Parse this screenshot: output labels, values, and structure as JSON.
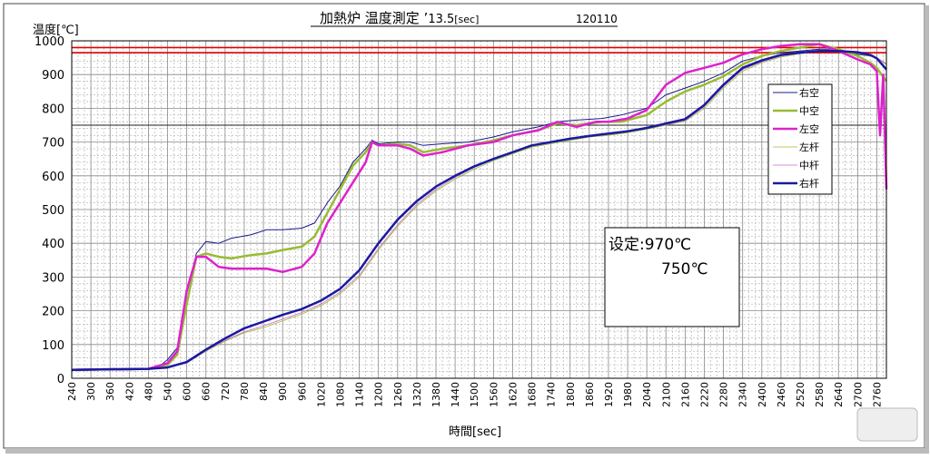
{
  "chart_data": {
    "type": "line",
    "title": "加熱炉 温度測定 ’13.5[sec]　120110",
    "title_main": "加熱炉 温度測定 ’",
    "title_ver": "13.5",
    "title_unit": "[sec]",
    "title_id": "120110",
    "ylabel": "温度[℃]",
    "xlabel": "時間[sec]",
    "ylim": [
      0,
      1000
    ],
    "xlim": [
      240,
      2790
    ],
    "grid": true,
    "legend_position": "right",
    "y_ticks": [
      0,
      100,
      200,
      300,
      400,
      500,
      600,
      700,
      800,
      900,
      1000
    ],
    "x_ticks": [
      240,
      300,
      360,
      420,
      480,
      540,
      600,
      660,
      720,
      780,
      840,
      900,
      960,
      1020,
      1080,
      1140,
      1200,
      1260,
      1320,
      1380,
      1440,
      1500,
      1560,
      1620,
      1680,
      1740,
      1800,
      1860,
      1920,
      1980,
      2040,
      2100,
      2160,
      2220,
      2280,
      2340,
      2400,
      2460,
      2520,
      2580,
      2640,
      2700,
      2760
    ],
    "reference_lines": [
      {
        "value": 980,
        "color": "#e00000"
      },
      {
        "value": 965,
        "color": "#e00000"
      },
      {
        "value": 750,
        "color": "#222222"
      }
    ],
    "annotation": {
      "line1": "设定:970℃",
      "line2": "750℃"
    },
    "series": [
      {
        "name": "右空",
        "color": "#1a1a8c",
        "width": 1,
        "points": [
          [
            240,
            25
          ],
          [
            480,
            28
          ],
          [
            520,
            40
          ],
          [
            540,
            55
          ],
          [
            570,
            90
          ],
          [
            600,
            250
          ],
          [
            630,
            370
          ],
          [
            660,
            405
          ],
          [
            700,
            400
          ],
          [
            740,
            415
          ],
          [
            800,
            425
          ],
          [
            850,
            440
          ],
          [
            900,
            440
          ],
          [
            960,
            445
          ],
          [
            1000,
            460
          ],
          [
            1040,
            520
          ],
          [
            1080,
            570
          ],
          [
            1120,
            640
          ],
          [
            1160,
            680
          ],
          [
            1180,
            705
          ],
          [
            1200,
            695
          ],
          [
            1260,
            700
          ],
          [
            1300,
            700
          ],
          [
            1340,
            690
          ],
          [
            1400,
            695
          ],
          [
            1480,
            700
          ],
          [
            1560,
            715
          ],
          [
            1620,
            730
          ],
          [
            1700,
            745
          ],
          [
            1760,
            760
          ],
          [
            1820,
            765
          ],
          [
            1900,
            770
          ],
          [
            1960,
            780
          ],
          [
            2040,
            800
          ],
          [
            2100,
            840
          ],
          [
            2160,
            860
          ],
          [
            2220,
            880
          ],
          [
            2280,
            905
          ],
          [
            2340,
            940
          ],
          [
            2400,
            955
          ],
          [
            2460,
            965
          ],
          [
            2520,
            970
          ],
          [
            2580,
            975
          ],
          [
            2640,
            975
          ],
          [
            2700,
            960
          ],
          [
            2740,
            955
          ],
          [
            2760,
            950
          ],
          [
            2790,
            930
          ]
        ]
      },
      {
        "name": "中空",
        "color": "#99bb33",
        "width": 2.5,
        "points": [
          [
            240,
            25
          ],
          [
            480,
            28
          ],
          [
            540,
            40
          ],
          [
            570,
            70
          ],
          [
            600,
            220
          ],
          [
            630,
            360
          ],
          [
            660,
            370
          ],
          [
            700,
            360
          ],
          [
            740,
            355
          ],
          [
            800,
            365
          ],
          [
            850,
            370
          ],
          [
            900,
            380
          ],
          [
            960,
            390
          ],
          [
            1000,
            420
          ],
          [
            1040,
            490
          ],
          [
            1080,
            560
          ],
          [
            1120,
            630
          ],
          [
            1160,
            670
          ],
          [
            1180,
            700
          ],
          [
            1200,
            690
          ],
          [
            1260,
            695
          ],
          [
            1300,
            690
          ],
          [
            1340,
            670
          ],
          [
            1400,
            680
          ],
          [
            1480,
            690
          ],
          [
            1560,
            705
          ],
          [
            1620,
            720
          ],
          [
            1700,
            735
          ],
          [
            1760,
            755
          ],
          [
            1820,
            750
          ],
          [
            1900,
            760
          ],
          [
            1960,
            760
          ],
          [
            2040,
            780
          ],
          [
            2100,
            820
          ],
          [
            2160,
            850
          ],
          [
            2220,
            870
          ],
          [
            2280,
            895
          ],
          [
            2340,
            930
          ],
          [
            2400,
            955
          ],
          [
            2460,
            970
          ],
          [
            2520,
            980
          ],
          [
            2580,
            990
          ],
          [
            2640,
            975
          ],
          [
            2700,
            955
          ],
          [
            2740,
            935
          ],
          [
            2760,
            920
          ],
          [
            2790,
            880
          ]
        ]
      },
      {
        "name": "左空",
        "color": "#dd22cc",
        "width": 2.5,
        "points": [
          [
            240,
            25
          ],
          [
            480,
            28
          ],
          [
            540,
            45
          ],
          [
            570,
            80
          ],
          [
            600,
            260
          ],
          [
            630,
            360
          ],
          [
            660,
            360
          ],
          [
            700,
            330
          ],
          [
            740,
            325
          ],
          [
            800,
            325
          ],
          [
            850,
            325
          ],
          [
            900,
            315
          ],
          [
            960,
            330
          ],
          [
            1000,
            370
          ],
          [
            1040,
            460
          ],
          [
            1080,
            520
          ],
          [
            1120,
            580
          ],
          [
            1160,
            640
          ],
          [
            1180,
            700
          ],
          [
            1200,
            690
          ],
          [
            1260,
            690
          ],
          [
            1300,
            680
          ],
          [
            1340,
            660
          ],
          [
            1400,
            670
          ],
          [
            1480,
            690
          ],
          [
            1560,
            700
          ],
          [
            1620,
            720
          ],
          [
            1700,
            735
          ],
          [
            1760,
            760
          ],
          [
            1820,
            745
          ],
          [
            1880,
            760
          ],
          [
            1920,
            760
          ],
          [
            1980,
            770
          ],
          [
            2040,
            795
          ],
          [
            2100,
            870
          ],
          [
            2160,
            905
          ],
          [
            2220,
            920
          ],
          [
            2280,
            935
          ],
          [
            2340,
            960
          ],
          [
            2400,
            975
          ],
          [
            2460,
            985
          ],
          [
            2520,
            990
          ],
          [
            2580,
            990
          ],
          [
            2640,
            970
          ],
          [
            2700,
            945
          ],
          [
            2740,
            930
          ],
          [
            2760,
            910
          ],
          [
            2770,
            720
          ],
          [
            2780,
            900
          ],
          [
            2790,
            560
          ]
        ]
      },
      {
        "name": "左杆",
        "color": "#99bb33",
        "width": 0.8,
        "points": [
          [
            240,
            25
          ],
          [
            480,
            28
          ],
          [
            540,
            33
          ],
          [
            600,
            45
          ],
          [
            660,
            80
          ],
          [
            720,
            110
          ],
          [
            780,
            135
          ],
          [
            840,
            150
          ],
          [
            900,
            170
          ],
          [
            960,
            190
          ],
          [
            1020,
            215
          ],
          [
            1080,
            250
          ],
          [
            1140,
            300
          ],
          [
            1200,
            380
          ],
          [
            1260,
            450
          ],
          [
            1320,
            510
          ],
          [
            1380,
            555
          ],
          [
            1440,
            590
          ],
          [
            1500,
            620
          ],
          [
            1560,
            645
          ],
          [
            1620,
            665
          ],
          [
            1680,
            685
          ],
          [
            1740,
            695
          ],
          [
            1800,
            705
          ],
          [
            1860,
            715
          ],
          [
            1920,
            720
          ],
          [
            1980,
            728
          ],
          [
            2040,
            738
          ],
          [
            2100,
            750
          ],
          [
            2160,
            762
          ],
          [
            2220,
            800
          ],
          [
            2280,
            860
          ],
          [
            2340,
            910
          ],
          [
            2400,
            935
          ],
          [
            2460,
            952
          ],
          [
            2520,
            962
          ],
          [
            2580,
            968
          ],
          [
            2640,
            968
          ],
          [
            2700,
            962
          ],
          [
            2740,
            955
          ],
          [
            2760,
            948
          ],
          [
            2790,
            930
          ]
        ]
      },
      {
        "name": "中杆",
        "color": "#cc66cc",
        "width": 0.8,
        "points": [
          [
            240,
            25
          ],
          [
            480,
            28
          ],
          [
            540,
            33
          ],
          [
            600,
            45
          ],
          [
            660,
            82
          ],
          [
            720,
            112
          ],
          [
            780,
            138
          ],
          [
            840,
            155
          ],
          [
            900,
            175
          ],
          [
            960,
            195
          ],
          [
            1020,
            220
          ],
          [
            1080,
            255
          ],
          [
            1140,
            305
          ],
          [
            1200,
            385
          ],
          [
            1260,
            455
          ],
          [
            1320,
            515
          ],
          [
            1380,
            560
          ],
          [
            1440,
            595
          ],
          [
            1500,
            625
          ],
          [
            1560,
            648
          ],
          [
            1620,
            668
          ],
          [
            1680,
            688
          ],
          [
            1740,
            698
          ],
          [
            1800,
            708
          ],
          [
            1860,
            717
          ],
          [
            1920,
            722
          ],
          [
            1980,
            730
          ],
          [
            2040,
            740
          ],
          [
            2100,
            752
          ],
          [
            2160,
            764
          ],
          [
            2220,
            805
          ],
          [
            2280,
            865
          ],
          [
            2340,
            915
          ],
          [
            2400,
            938
          ],
          [
            2460,
            955
          ],
          [
            2520,
            964
          ],
          [
            2580,
            970
          ],
          [
            2640,
            970
          ],
          [
            2700,
            964
          ],
          [
            2740,
            956
          ],
          [
            2760,
            950
          ],
          [
            2790,
            932
          ]
        ]
      },
      {
        "name": "右杆",
        "color": "#1a1aa0",
        "width": 2.5,
        "points": [
          [
            240,
            25
          ],
          [
            480,
            28
          ],
          [
            540,
            32
          ],
          [
            600,
            48
          ],
          [
            660,
            85
          ],
          [
            720,
            118
          ],
          [
            780,
            148
          ],
          [
            840,
            168
          ],
          [
            900,
            188
          ],
          [
            960,
            205
          ],
          [
            1020,
            230
          ],
          [
            1080,
            265
          ],
          [
            1140,
            320
          ],
          [
            1200,
            400
          ],
          [
            1260,
            470
          ],
          [
            1320,
            525
          ],
          [
            1380,
            568
          ],
          [
            1440,
            600
          ],
          [
            1500,
            628
          ],
          [
            1560,
            650
          ],
          [
            1620,
            670
          ],
          [
            1680,
            690
          ],
          [
            1740,
            700
          ],
          [
            1800,
            710
          ],
          [
            1860,
            718
          ],
          [
            1920,
            725
          ],
          [
            1980,
            732
          ],
          [
            2040,
            742
          ],
          [
            2100,
            755
          ],
          [
            2160,
            768
          ],
          [
            2220,
            810
          ],
          [
            2280,
            870
          ],
          [
            2340,
            920
          ],
          [
            2400,
            942
          ],
          [
            2460,
            958
          ],
          [
            2520,
            965
          ],
          [
            2580,
            970
          ],
          [
            2640,
            970
          ],
          [
            2700,
            966
          ],
          [
            2740,
            958
          ],
          [
            2760,
            948
          ],
          [
            2790,
            915
          ]
        ]
      }
    ]
  }
}
